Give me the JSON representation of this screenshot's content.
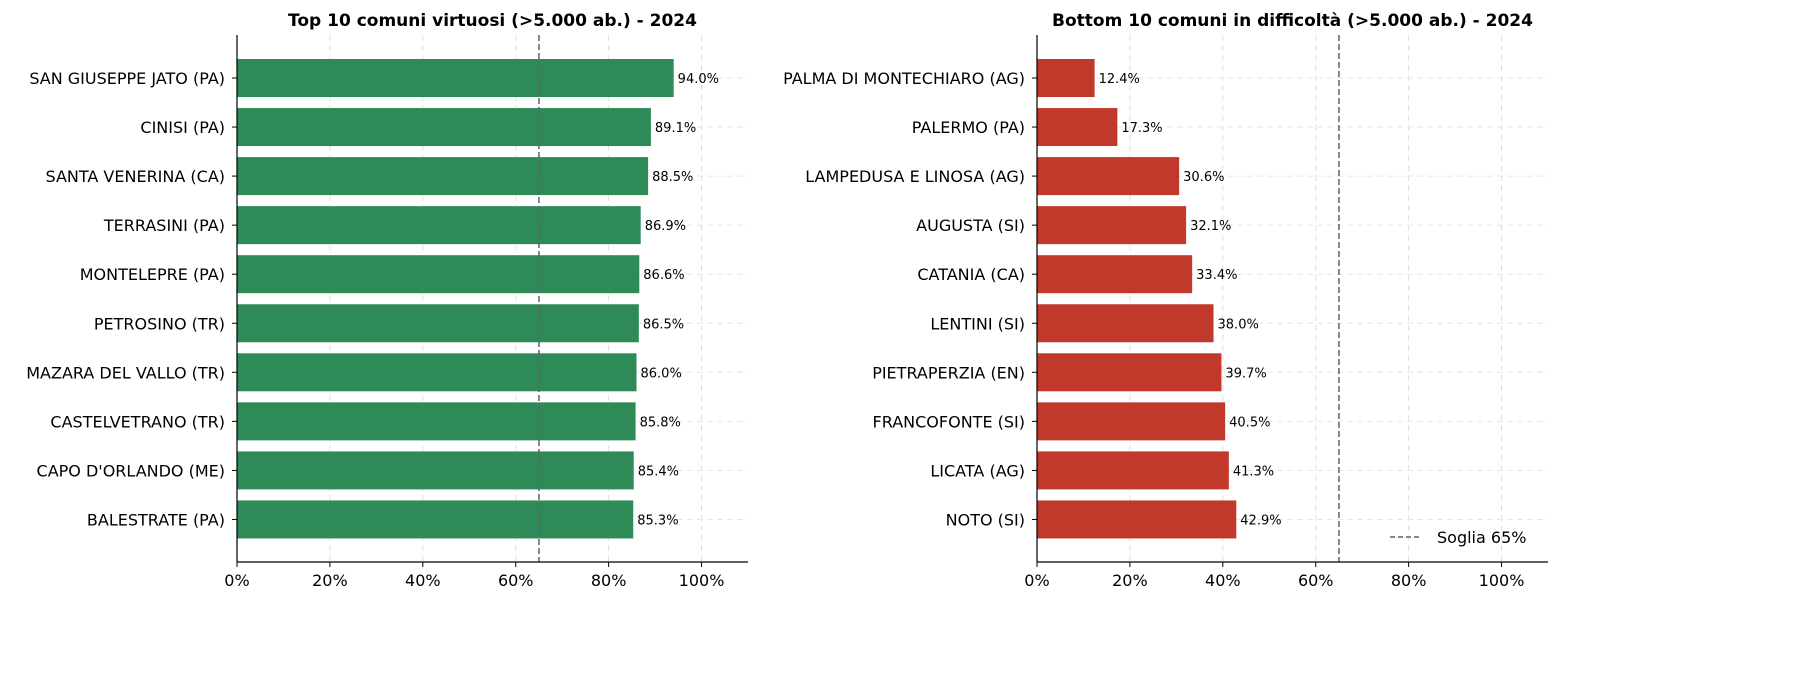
{
  "chart_data": [
    {
      "type": "bar",
      "orientation": "horizontal",
      "title": "Top 10 comuni virtuosi (>5.000 ab.) - 2024",
      "categories": [
        "SAN GIUSEPPE JATO (PA)",
        "CINISI (PA)",
        "SANTA VENERINA (CA)",
        "TERRASINI (PA)",
        "MONTELEPRE (PA)",
        "PETROSINO (TR)",
        "MAZARA DEL VALLO (TR)",
        "CASTELVETRANO (TR)",
        "CAPO D'ORLANDO (ME)",
        "BALESTRATE (PA)"
      ],
      "values": [
        94.0,
        89.1,
        88.5,
        86.9,
        86.6,
        86.5,
        86.0,
        85.8,
        85.4,
        85.3
      ],
      "data_labels": [
        "94.0%",
        "89.1%",
        "88.5%",
        "86.9%",
        "86.6%",
        "86.5%",
        "86.0%",
        "85.8%",
        "85.4%",
        "85.3%"
      ],
      "xlim": [
        0,
        110
      ],
      "xticks": [
        "0%",
        "20%",
        "40%",
        "60%",
        "80%",
        "100%"
      ],
      "threshold": 65,
      "grid": true,
      "color": "#2e8b57"
    },
    {
      "type": "bar",
      "orientation": "horizontal",
      "title": "Bottom 10 comuni in difficoltà (>5.000 ab.) - 2024",
      "categories": [
        "PALMA DI MONTECHIARO (AG)",
        "PALERMO (PA)",
        "LAMPEDUSA E LINOSA (AG)",
        "AUGUSTA (SI)",
        "CATANIA (CA)",
        "LENTINI (SI)",
        "PIETRAPERZIA (EN)",
        "FRANCOFONTE (SI)",
        "LICATA (AG)",
        "NOTO (SI)"
      ],
      "values": [
        12.4,
        17.3,
        30.6,
        32.1,
        33.4,
        38.0,
        39.7,
        40.5,
        41.3,
        42.9
      ],
      "data_labels": [
        "12.4%",
        "17.3%",
        "30.6%",
        "32.1%",
        "33.4%",
        "38.0%",
        "39.7%",
        "40.5%",
        "41.3%",
        "42.9%"
      ],
      "xlim": [
        0,
        110
      ],
      "xticks": [
        "0%",
        "20%",
        "40%",
        "60%",
        "80%",
        "100%"
      ],
      "threshold": 65,
      "grid": true,
      "color": "#c0392b",
      "legend": {
        "label": "Soglia 65%",
        "placement": "lower-right"
      }
    }
  ],
  "threshold_color": "#5a6472"
}
